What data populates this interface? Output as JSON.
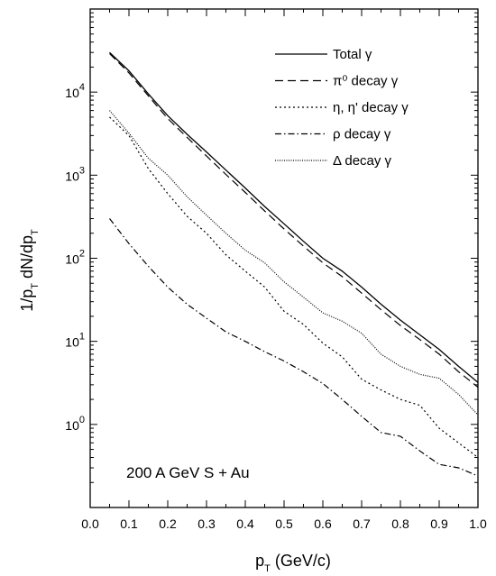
{
  "chart_data": {
    "type": "line",
    "title": "",
    "xlabel": "p_T (GeV/c)",
    "ylabel": "1/p_T dN/dp_T",
    "x_scale": "linear",
    "y_scale": "log",
    "xlim": [
      0.0,
      1.0
    ],
    "ylim": [
      0.1,
      100000
    ],
    "x_ticks": [
      0.0,
      0.1,
      0.2,
      0.3,
      0.4,
      0.5,
      0.6,
      0.7,
      0.8,
      0.9,
      1.0
    ],
    "x_tick_labels": [
      "0.0",
      "0.1",
      "0.2",
      "0.3",
      "0.4",
      "0.5",
      "0.6",
      "0.7",
      "0.8",
      "0.9",
      "1.0"
    ],
    "y_ticks": [
      1,
      10,
      100,
      1000,
      10000
    ],
    "y_tick_labels": [
      {
        "base": "10",
        "exp": "0"
      },
      {
        "base": "10",
        "exp": "1"
      },
      {
        "base": "10",
        "exp": "2"
      },
      {
        "base": "10",
        "exp": "3"
      },
      {
        "base": "10",
        "exp": "4"
      }
    ],
    "grid": false,
    "legend_position": "top-right",
    "annotation": "200 A GeV  S + Au",
    "series": [
      {
        "name": "Total γ",
        "line_style": "solid",
        "x": [
          0.05,
          0.1,
          0.15,
          0.2,
          0.25,
          0.3,
          0.35,
          0.4,
          0.45,
          0.5,
          0.55,
          0.6,
          0.65,
          0.7,
          0.75,
          0.8,
          0.85,
          0.9,
          0.95,
          1.0
        ],
        "y": [
          30000,
          18000,
          9500,
          5200,
          3100,
          1900,
          1150,
          700,
          420,
          260,
          160,
          100,
          70,
          45,
          28,
          18,
          12,
          8,
          5,
          3.2
        ]
      },
      {
        "name": "π⁰ decay γ",
        "line_style": "dashed",
        "x": [
          0.05,
          0.1,
          0.15,
          0.2,
          0.25,
          0.3,
          0.35,
          0.4,
          0.45,
          0.5,
          0.55,
          0.6,
          0.65,
          0.7,
          0.75,
          0.8,
          0.85,
          0.9,
          0.95,
          1.0
        ],
        "y": [
          29000,
          17000,
          9000,
          4800,
          2850,
          1700,
          1020,
          620,
          370,
          225,
          140,
          88,
          60,
          38,
          24,
          15.5,
          10.5,
          7,
          4.3,
          2.8
        ]
      },
      {
        "name": "η, η' decay γ",
        "line_style": "dotted",
        "x": [
          0.05,
          0.1,
          0.15,
          0.2,
          0.25,
          0.3,
          0.35,
          0.4,
          0.45,
          0.5,
          0.55,
          0.6,
          0.65,
          0.7,
          0.75,
          0.8,
          0.85,
          0.9,
          0.95,
          1.0
        ],
        "y": [
          5000,
          3000,
          1200,
          600,
          320,
          200,
          110,
          70,
          45,
          23,
          16,
          9.5,
          6.5,
          3.5,
          2.6,
          2.0,
          1.7,
          0.9,
          0.6,
          0.4
        ]
      },
      {
        "name": "ρ decay γ",
        "line_style": "dashdot",
        "x": [
          0.05,
          0.1,
          0.15,
          0.2,
          0.25,
          0.3,
          0.35,
          0.4,
          0.45,
          0.5,
          0.55,
          0.6,
          0.65,
          0.7,
          0.75,
          0.8,
          0.85,
          0.9,
          0.95,
          1.0
        ],
        "y": [
          300,
          150,
          80,
          45,
          28,
          19,
          13,
          10,
          7.5,
          5.8,
          4.3,
          3.1,
          2.0,
          1.25,
          0.8,
          0.72,
          0.48,
          0.33,
          0.3,
          0.24
        ]
      },
      {
        "name": "Δ decay γ",
        "line_style": "finedot",
        "x": [
          0.05,
          0.1,
          0.15,
          0.2,
          0.25,
          0.3,
          0.35,
          0.4,
          0.45,
          0.5,
          0.55,
          0.6,
          0.65,
          0.7,
          0.75,
          0.8,
          0.85,
          0.9,
          0.95,
          1.0
        ],
        "y": [
          6000,
          3200,
          1600,
          1000,
          550,
          330,
          200,
          125,
          88,
          52,
          34,
          22,
          17.5,
          12.5,
          7,
          5,
          4,
          3.6,
          2.3,
          1.3
        ]
      }
    ]
  }
}
